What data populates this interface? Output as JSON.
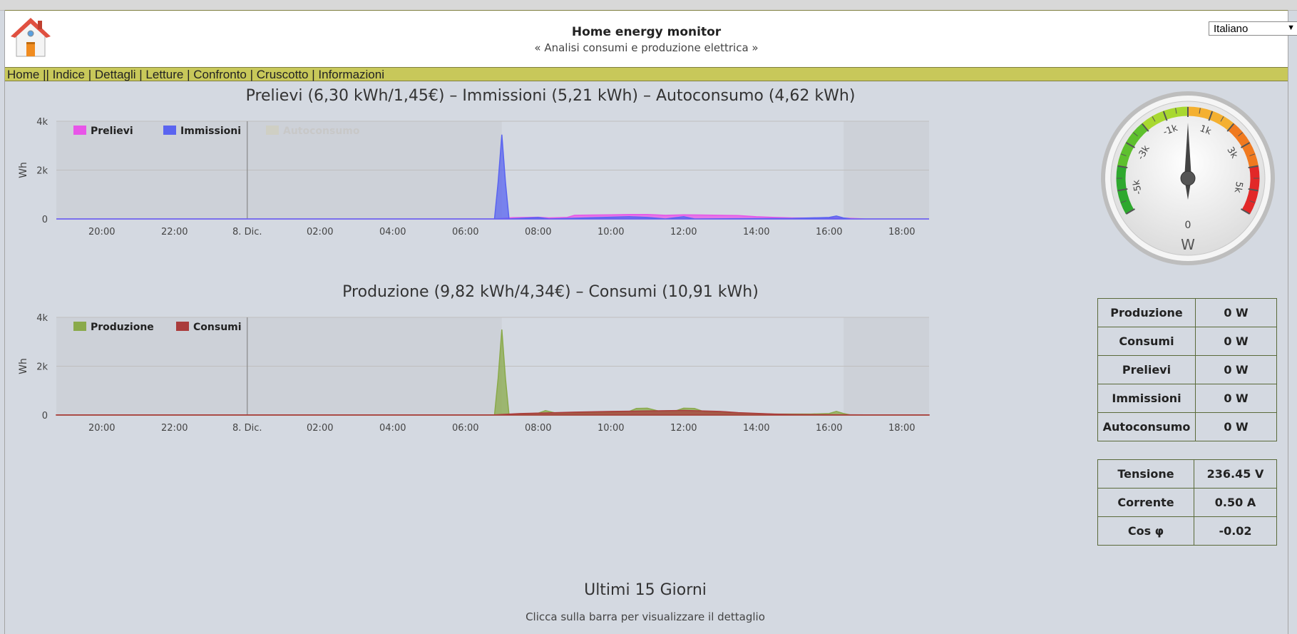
{
  "header": {
    "title": "Home energy monitor",
    "subtitle": "« Analisi consumi e produzione elettrica »",
    "language": "Italiano"
  },
  "nav": [
    "Home",
    "Indice",
    "Dettagli",
    "Letture",
    "Confronto",
    "Cruscotto",
    "Informazioni"
  ],
  "charts": {
    "top_title": "Prelievi (6,30 kWh/1,45€) – Immissioni (5,21 kWh) – Autoconsumo (4,62 kWh)",
    "bottom_title": "Produzione (9,82 kWh/4,34€) – Consumi (10,91 kWh)"
  },
  "chart_data": [
    {
      "type": "area",
      "title": "Prelievi (6,30 kWh/1,45€) – Immissioni (5,21 kWh) – Autoconsumo (4,62 kWh)",
      "ylabel": "Wh",
      "ylim": [
        0,
        4000
      ],
      "yticks": [
        "0",
        "2k",
        "4k"
      ],
      "xticks": [
        "20:00",
        "22:00",
        "8. Dic.",
        "02:00",
        "04:00",
        "06:00",
        "08:00",
        "10:00",
        "12:00",
        "14:00",
        "16:00",
        "18:00"
      ],
      "xrange_hours": [
        18.75,
        42.75
      ],
      "night_bands": [
        [
          18.75,
          31.0
        ],
        [
          40.4,
          42.75
        ]
      ],
      "day_marker": 24,
      "legend_position": "top-left",
      "series": [
        {
          "name": "Prelievi",
          "color": "#e855e8",
          "points": [
            [
              18.75,
              0
            ],
            [
              30.8,
              0
            ],
            [
              31.3,
              50
            ],
            [
              32.0,
              70
            ],
            [
              32.3,
              40
            ],
            [
              32.8,
              60
            ],
            [
              33.0,
              150
            ],
            [
              33.5,
              160
            ],
            [
              34.0,
              170
            ],
            [
              34.5,
              180
            ],
            [
              35.0,
              180
            ],
            [
              35.5,
              150
            ],
            [
              36.0,
              170
            ],
            [
              36.5,
              160
            ],
            [
              37.0,
              150
            ],
            [
              37.5,
              140
            ],
            [
              38.0,
              90
            ],
            [
              38.5,
              60
            ],
            [
              39.0,
              40
            ],
            [
              39.5,
              40
            ],
            [
              40.0,
              50
            ],
            [
              40.5,
              30
            ],
            [
              41.0,
              0
            ],
            [
              42.75,
              0
            ]
          ]
        },
        {
          "name": "Immissioni",
          "color": "#5a64f0",
          "points": [
            [
              18.75,
              0
            ],
            [
              30.8,
              0
            ],
            [
              30.9,
              1500
            ],
            [
              31.0,
              3450
            ],
            [
              31.1,
              1500
            ],
            [
              31.2,
              0
            ],
            [
              32.0,
              60
            ],
            [
              32.3,
              0
            ],
            [
              34.5,
              90
            ],
            [
              35.0,
              60
            ],
            [
              35.5,
              0
            ],
            [
              36.0,
              90
            ],
            [
              36.3,
              0
            ],
            [
              39.0,
              20
            ],
            [
              40.0,
              60
            ],
            [
              40.2,
              120
            ],
            [
              40.4,
              40
            ],
            [
              40.6,
              0
            ],
            [
              42.75,
              0
            ]
          ]
        },
        {
          "name": "Autoconsumo",
          "color": "#c8c8b4",
          "visible": false,
          "points": []
        }
      ]
    },
    {
      "type": "area",
      "title": "Produzione (9,82 kWh/4,34€) – Consumi (10,91 kWh)",
      "ylabel": "Wh",
      "ylim": [
        0,
        4000
      ],
      "yticks": [
        "0",
        "2k",
        "4k"
      ],
      "xticks": [
        "20:00",
        "22:00",
        "8. Dic.",
        "02:00",
        "04:00",
        "06:00",
        "08:00",
        "10:00",
        "12:00",
        "14:00",
        "16:00",
        "18:00"
      ],
      "xrange_hours": [
        18.75,
        42.75
      ],
      "night_bands": [
        [
          18.75,
          31.0
        ],
        [
          40.4,
          42.75
        ]
      ],
      "day_marker": 24,
      "legend_position": "top-left",
      "series": [
        {
          "name": "Produzione",
          "color": "#8aaa4a",
          "points": [
            [
              18.75,
              0
            ],
            [
              30.8,
              0
            ],
            [
              30.9,
              1500
            ],
            [
              31.0,
              3500
            ],
            [
              31.1,
              1500
            ],
            [
              31.2,
              0
            ],
            [
              32.0,
              80
            ],
            [
              32.2,
              180
            ],
            [
              32.5,
              80
            ],
            [
              33.0,
              90
            ],
            [
              34.0,
              110
            ],
            [
              34.5,
              150
            ],
            [
              34.7,
              270
            ],
            [
              35.0,
              280
            ],
            [
              35.3,
              170
            ],
            [
              35.8,
              180
            ],
            [
              36.0,
              280
            ],
            [
              36.3,
              270
            ],
            [
              36.6,
              120
            ],
            [
              37.5,
              80
            ],
            [
              38.5,
              40
            ],
            [
              39.5,
              40
            ],
            [
              40.0,
              60
            ],
            [
              40.2,
              150
            ],
            [
              40.4,
              60
            ],
            [
              40.6,
              0
            ],
            [
              42.75,
              0
            ]
          ]
        },
        {
          "name": "Consumi",
          "color": "#aa3c3c",
          "points": [
            [
              18.75,
              10
            ],
            [
              30.8,
              10
            ],
            [
              31.5,
              60
            ],
            [
              32.0,
              80
            ],
            [
              33.0,
              120
            ],
            [
              34.0,
              150
            ],
            [
              35.0,
              170
            ],
            [
              36.0,
              190
            ],
            [
              37.0,
              150
            ],
            [
              37.5,
              100
            ],
            [
              38.0,
              70
            ],
            [
              38.5,
              40
            ],
            [
              39.0,
              25
            ],
            [
              40.0,
              15
            ],
            [
              41.0,
              10
            ],
            [
              42.75,
              10
            ]
          ]
        }
      ]
    }
  ],
  "gauge": {
    "unit": "W",
    "value": 0,
    "min": -6000,
    "max": 6000,
    "labels": [
      "-5k",
      "-3k",
      "-1k",
      "0",
      "1k",
      "3k",
      "5k"
    ]
  },
  "power_table": [
    {
      "label": "Produzione",
      "value": "0 W"
    },
    {
      "label": "Consumi",
      "value": "0 W"
    },
    {
      "label": "Prelievi",
      "value": "0 W"
    },
    {
      "label": "Immissioni",
      "value": "0 W"
    },
    {
      "label": "Autoconsumo",
      "value": "0 W"
    }
  ],
  "electric_table": [
    {
      "label": "Tensione",
      "value": "236.45 V"
    },
    {
      "label": "Corrente",
      "value": "0.50 A"
    },
    {
      "label": "Cos φ",
      "value": "-0.02"
    }
  ],
  "bottom": {
    "title": "Ultimi 15 Giorni",
    "subtitle": "Clicca sulla barra per visualizzare il dettaglio"
  },
  "colors": {
    "nav_bg": "#c8c85a",
    "page_bg": "#d4d9e1"
  }
}
